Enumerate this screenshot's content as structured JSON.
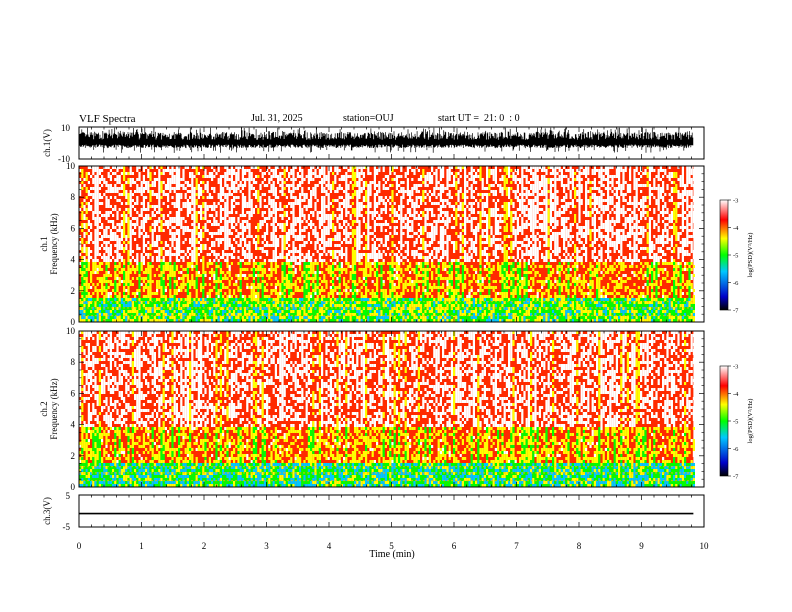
{
  "header": {
    "title": "VLF Spectra",
    "date": "Jul. 31, 2025",
    "station": "station=OUJ",
    "start_ut": "start UT =  21: 0  : 0"
  },
  "chart_data": [
    {
      "type": "line",
      "panel": "ch1-waveform",
      "ylabel": "ch.1(V)",
      "ylim": [
        -10,
        10
      ],
      "yticks": [
        "10",
        "-10"
      ],
      "xlim": [
        0,
        10
      ],
      "description_series": "dense impulsive signal between about -3 and 7 V",
      "color": "#000000"
    },
    {
      "type": "heatmap",
      "panel": "ch1-spectrogram",
      "ylabel_top": "ch.1",
      "ylabel": "Frequency (kHz)",
      "ylim": [
        0,
        10
      ],
      "yticks": [
        "0",
        "2",
        "4",
        "6",
        "8",
        "10"
      ],
      "xlim": [
        0,
        10
      ],
      "data_end_min": 9.83,
      "colorbar": {
        "label": "log(PSD)(V²/Hz)",
        "range": [
          -7,
          -3
        ],
        "ticks": [
          "-3",
          "-4",
          "-5",
          "-6",
          "-7"
        ]
      }
    },
    {
      "type": "heatmap",
      "panel": "ch2-spectrogram",
      "ylabel_top": "ch.2",
      "ylabel": "Frequency (kHz)",
      "ylim": [
        0,
        10
      ],
      "yticks": [
        "0",
        "2",
        "4",
        "6",
        "8",
        "10"
      ],
      "xlim": [
        0,
        10
      ],
      "data_end_min": 9.83,
      "colorbar": {
        "label": "log(PSD)(V²/Hz)",
        "range": [
          -7,
          -3
        ],
        "ticks": [
          "-3",
          "-4",
          "-5",
          "-6",
          "-7"
        ]
      }
    },
    {
      "type": "line",
      "panel": "ch3-waveform",
      "ylabel": "ch.3(V)",
      "ylim": [
        -5,
        5
      ],
      "yticks": [
        "5",
        "-5"
      ],
      "xlim": [
        0,
        10
      ],
      "x": [
        0,
        9.83
      ],
      "values": [
        -0.8,
        -0.8
      ],
      "color": "#000000"
    }
  ],
  "xaxis": {
    "label": "Time (min)",
    "ticks": [
      "0",
      "1",
      "2",
      "3",
      "4",
      "5",
      "6",
      "7",
      "8",
      "9",
      "10"
    ]
  },
  "colors": {
    "scale": [
      "#000000",
      "#0000c8",
      "#00c8ff",
      "#00ff00",
      "#ffff00",
      "#ff0000",
      "#ffffff"
    ]
  }
}
